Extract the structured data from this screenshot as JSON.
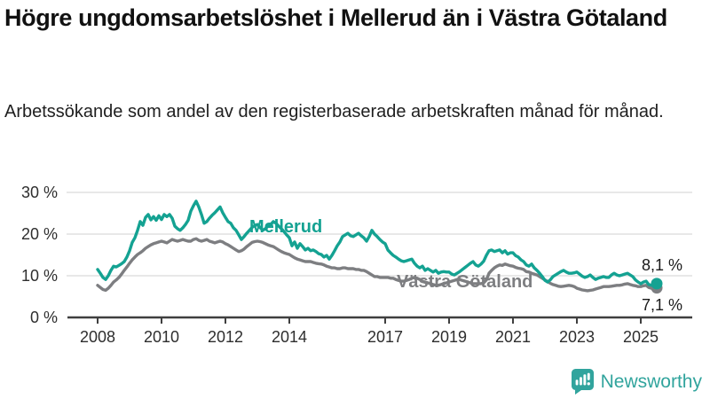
{
  "brand": {
    "name": "Newsworthy",
    "color": "#31a49d"
  },
  "chart_data": {
    "type": "line",
    "title": "Högre ungdomsarbetslöshet i Mellerud än i Västra Götaland",
    "subtitle": "Arbetssökande som andel av den registerbaserade arbetskraften månad för månad.",
    "xlabel": "",
    "ylabel": "",
    "y_unit": "%",
    "ylim": [
      0,
      30
    ],
    "x_start": "2008-01",
    "x_end": "2025-07",
    "x_unit": "month",
    "grid": "horizontal",
    "legend": "inline-labels",
    "colors": {
      "grid": "#dadada",
      "axis": "#3f3f3f"
    },
    "y_ticks": [
      {
        "label": "30 %",
        "value": 30
      },
      {
        "label": "20 %",
        "value": 20
      },
      {
        "label": "10 %",
        "value": 10
      },
      {
        "label": "0 %",
        "value": 0
      }
    ],
    "x_ticks": [
      {
        "label": "2008",
        "year": 2008
      },
      {
        "label": "2010",
        "year": 2010
      },
      {
        "label": "2012",
        "year": 2012
      },
      {
        "label": "2014",
        "year": 2014
      },
      {
        "label": "2017",
        "year": 2017
      },
      {
        "label": "2019",
        "year": 2019
      },
      {
        "label": "2021",
        "year": 2021
      },
      {
        "label": "2023",
        "year": 2023
      },
      {
        "label": "2025",
        "year": 2025
      }
    ],
    "series": [
      {
        "name": "Mellerud",
        "color": "#14a292",
        "end_label": "8,1 %",
        "end_value": 8.1,
        "values": [
          11.5,
          10.6,
          9.6,
          9.1,
          10.0,
          11.3,
          12.3,
          12.1,
          12.5,
          12.9,
          13.4,
          14.5,
          16.0,
          18.0,
          19.1,
          20.9,
          23.0,
          22.1,
          24.0,
          24.7,
          23.4,
          24.2,
          23.3,
          24.4,
          23.5,
          24.7,
          24.2,
          24.7,
          23.8,
          21.9,
          21.3,
          20.9,
          21.5,
          22.3,
          23.3,
          25.5,
          26.8,
          27.9,
          26.5,
          24.7,
          22.6,
          23.0,
          23.8,
          24.5,
          25.1,
          25.8,
          26.5,
          25.1,
          24.0,
          23.0,
          22.6,
          21.5,
          20.9,
          19.8,
          18.7,
          19.4,
          20.2,
          20.9,
          21.6,
          22.0,
          22.3,
          21.6,
          20.9,
          21.3,
          21.9,
          22.3,
          23.0,
          22.6,
          21.9,
          21.3,
          20.6,
          19.8,
          19.1,
          17.2,
          18.1,
          16.6,
          17.7,
          17.0,
          16.2,
          16.6,
          16.0,
          16.2,
          15.8,
          15.3,
          15.1,
          14.5,
          14.9,
          14.0,
          14.9,
          16.0,
          17.2,
          18.1,
          19.4,
          19.8,
          20.2,
          19.6,
          19.4,
          19.8,
          20.2,
          19.6,
          19.1,
          18.3,
          19.4,
          20.9,
          20.0,
          19.4,
          18.7,
          18.1,
          17.7,
          16.2,
          15.5,
          14.9,
          14.5,
          14.0,
          13.6,
          13.4,
          13.6,
          13.8,
          14.0,
          13.0,
          12.3,
          11.9,
          12.3,
          11.3,
          11.7,
          11.3,
          10.9,
          11.3,
          10.6,
          10.9,
          11.0,
          10.9,
          10.9,
          10.4,
          10.2,
          10.6,
          11.0,
          11.5,
          12.0,
          12.5,
          13.0,
          13.4,
          12.6,
          12.3,
          12.8,
          13.5,
          14.9,
          16.0,
          16.2,
          15.8,
          16.0,
          16.2,
          15.5,
          16.0,
          15.2,
          15.5,
          15.5,
          14.8,
          14.5,
          13.8,
          13.4,
          12.6,
          12.3,
          12.8,
          11.9,
          11.3,
          10.6,
          9.8,
          8.9,
          8.5,
          9.0,
          9.8,
          10.2,
          10.6,
          11.0,
          11.3,
          10.9,
          10.6,
          10.6,
          10.7,
          10.9,
          10.4,
          9.9,
          9.6,
          9.8,
          10.2,
          9.6,
          9.1,
          9.4,
          9.6,
          9.8,
          9.6,
          9.6,
          10.2,
          10.6,
          10.2,
          10.0,
          10.2,
          10.4,
          10.6,
          10.2,
          9.8,
          9.0,
          8.5,
          8.1,
          8.5,
          8.7,
          7.9,
          7.7,
          8.3,
          8.1
        ]
      },
      {
        "name": "Västra Götaland",
        "color": "#7d7e81",
        "end_label": "7,1 %",
        "end_value": 7.1,
        "values": [
          7.7,
          7.2,
          6.7,
          6.5,
          7.0,
          7.7,
          8.5,
          9.0,
          9.6,
          10.4,
          11.3,
          12.1,
          13.0,
          13.8,
          14.5,
          15.1,
          15.5,
          16.0,
          16.6,
          17.0,
          17.4,
          17.7,
          17.9,
          18.1,
          18.3,
          18.1,
          17.9,
          18.3,
          18.7,
          18.5,
          18.3,
          18.5,
          18.7,
          18.5,
          18.3,
          18.3,
          18.7,
          18.9,
          18.5,
          18.3,
          18.5,
          18.7,
          18.3,
          18.1,
          17.9,
          18.1,
          18.3,
          18.1,
          17.7,
          17.4,
          17.0,
          16.6,
          16.2,
          15.8,
          16.0,
          16.4,
          17.0,
          17.5,
          18.0,
          18.2,
          18.3,
          18.2,
          18.0,
          17.7,
          17.4,
          17.2,
          17.0,
          16.6,
          16.2,
          15.8,
          15.5,
          15.3,
          15.1,
          14.7,
          14.3,
          14.0,
          13.8,
          13.6,
          13.4,
          13.4,
          13.4,
          13.2,
          13.0,
          12.9,
          12.8,
          12.6,
          12.3,
          12.1,
          11.9,
          11.9,
          11.7,
          11.7,
          11.9,
          11.9,
          11.7,
          11.7,
          11.7,
          11.5,
          11.5,
          11.3,
          11.3,
          11.0,
          10.6,
          10.2,
          9.8,
          9.8,
          9.6,
          9.6,
          9.6,
          9.6,
          9.4,
          9.4,
          9.1,
          8.9,
          8.7,
          8.7,
          8.9,
          9.1,
          9.4,
          9.6,
          9.4,
          9.1,
          8.7,
          8.5,
          8.3,
          8.1,
          7.9,
          7.7,
          7.7,
          7.9,
          8.1,
          8.3,
          8.5,
          8.7,
          8.9,
          9.1,
          9.1,
          8.9,
          8.7,
          8.5,
          8.3,
          8.1,
          8.1,
          8.1,
          8.1,
          8.3,
          9.0,
          10.6,
          11.3,
          11.9,
          12.3,
          12.6,
          12.5,
          12.8,
          12.6,
          12.4,
          12.3,
          12.0,
          11.8,
          11.7,
          11.5,
          11.0,
          10.9,
          10.6,
          10.4,
          10.2,
          9.8,
          9.4,
          9.0,
          8.6,
          8.2,
          7.9,
          7.7,
          7.5,
          7.4,
          7.5,
          7.6,
          7.7,
          7.6,
          7.4,
          7.0,
          6.8,
          6.6,
          6.5,
          6.4,
          6.5,
          6.6,
          6.8,
          7.0,
          7.2,
          7.4,
          7.4,
          7.4,
          7.5,
          7.6,
          7.7,
          7.7,
          7.8,
          8.0,
          8.1,
          7.9,
          7.7,
          7.6,
          7.4,
          7.4,
          7.6,
          7.7,
          7.2,
          7.0,
          7.3,
          7.1
        ]
      }
    ]
  }
}
